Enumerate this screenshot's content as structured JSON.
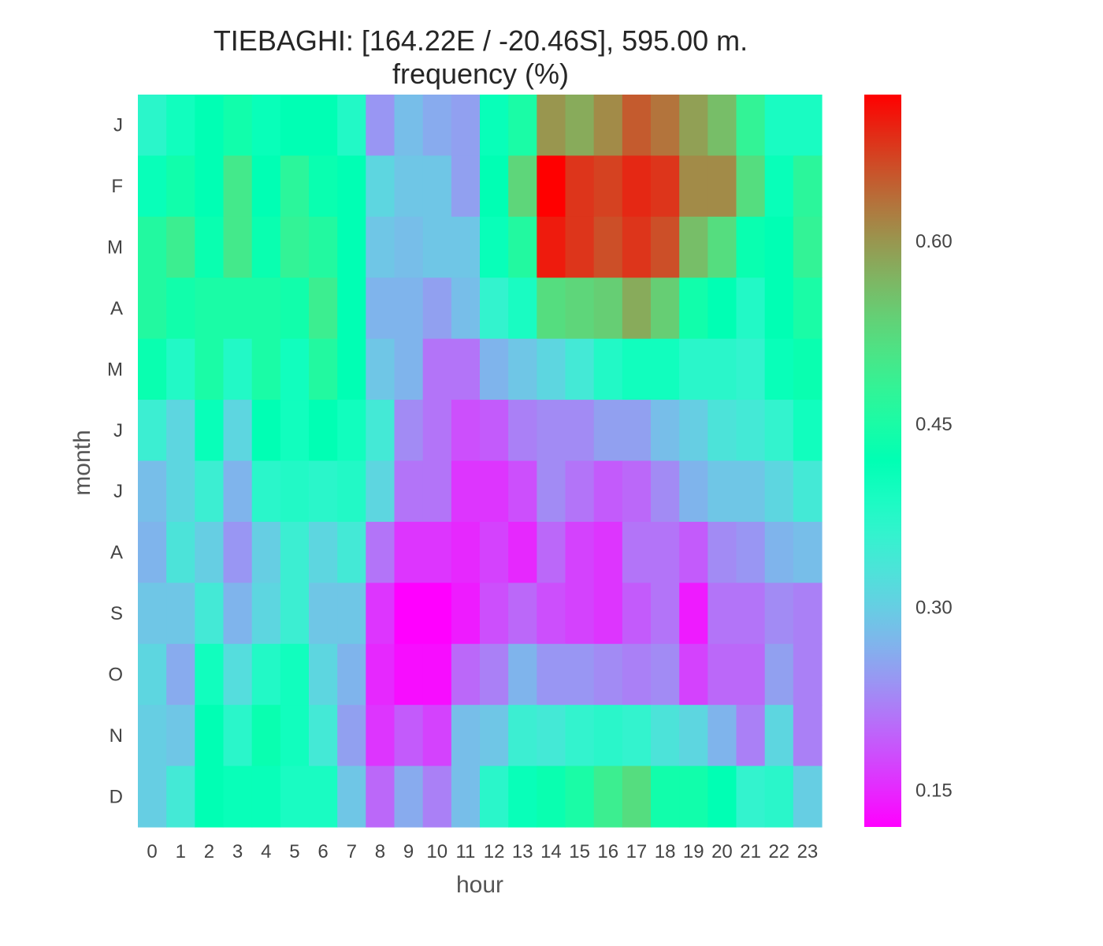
{
  "chart_data": {
    "type": "heatmap",
    "title": "TIEBAGHI: [164.22E / -20.46S], 595.00 m.",
    "subtitle": "frequency (%)",
    "xlabel": "hour",
    "ylabel": "month",
    "x_categories": [
      "0",
      "1",
      "2",
      "3",
      "4",
      "5",
      "6",
      "7",
      "8",
      "9",
      "10",
      "11",
      "12",
      "13",
      "14",
      "15",
      "16",
      "17",
      "18",
      "19",
      "20",
      "21",
      "22",
      "23"
    ],
    "y_categories": [
      "J",
      "F",
      "M",
      "A",
      "M",
      "J",
      "J",
      "A",
      "S",
      "O",
      "N",
      "D"
    ],
    "colormap": "rainbow",
    "vmin": 0.12,
    "vmax": 0.72,
    "colorbar_ticks": [
      {
        "value": 0.15,
        "label": "0.15"
      },
      {
        "value": 0.3,
        "label": "0.30"
      },
      {
        "value": 0.45,
        "label": "0.45"
      },
      {
        "value": 0.6,
        "label": "0.60"
      }
    ],
    "values": [
      [
        0.37,
        0.4,
        0.42,
        0.44,
        0.41,
        0.42,
        0.42,
        0.38,
        0.24,
        0.28,
        0.26,
        0.25,
        0.41,
        0.45,
        0.6,
        0.58,
        0.61,
        0.65,
        0.63,
        0.59,
        0.56,
        0.48,
        0.39,
        0.39
      ],
      [
        0.41,
        0.44,
        0.42,
        0.5,
        0.42,
        0.47,
        0.43,
        0.42,
        0.31,
        0.29,
        0.29,
        0.25,
        0.42,
        0.53,
        0.72,
        0.68,
        0.67,
        0.69,
        0.68,
        0.61,
        0.61,
        0.52,
        0.41,
        0.47
      ],
      [
        0.46,
        0.49,
        0.43,
        0.5,
        0.43,
        0.48,
        0.46,
        0.42,
        0.29,
        0.28,
        0.29,
        0.29,
        0.41,
        0.46,
        0.7,
        0.68,
        0.66,
        0.68,
        0.66,
        0.56,
        0.52,
        0.43,
        0.42,
        0.48
      ],
      [
        0.46,
        0.44,
        0.45,
        0.45,
        0.45,
        0.44,
        0.49,
        0.42,
        0.27,
        0.27,
        0.25,
        0.28,
        0.36,
        0.39,
        0.52,
        0.53,
        0.54,
        0.58,
        0.54,
        0.44,
        0.42,
        0.38,
        0.42,
        0.45
      ],
      [
        0.43,
        0.38,
        0.45,
        0.38,
        0.45,
        0.4,
        0.46,
        0.42,
        0.29,
        0.27,
        0.21,
        0.21,
        0.27,
        0.29,
        0.31,
        0.34,
        0.38,
        0.4,
        0.4,
        0.37,
        0.37,
        0.36,
        0.41,
        0.43
      ],
      [
        0.35,
        0.31,
        0.41,
        0.31,
        0.42,
        0.4,
        0.42,
        0.4,
        0.34,
        0.23,
        0.21,
        0.18,
        0.19,
        0.22,
        0.23,
        0.23,
        0.25,
        0.25,
        0.28,
        0.3,
        0.33,
        0.34,
        0.36,
        0.4
      ],
      [
        0.28,
        0.31,
        0.35,
        0.27,
        0.37,
        0.38,
        0.37,
        0.38,
        0.31,
        0.21,
        0.21,
        0.16,
        0.16,
        0.18,
        0.23,
        0.21,
        0.19,
        0.2,
        0.23,
        0.27,
        0.29,
        0.29,
        0.31,
        0.34
      ],
      [
        0.27,
        0.33,
        0.3,
        0.24,
        0.3,
        0.35,
        0.31,
        0.34,
        0.21,
        0.16,
        0.16,
        0.15,
        0.17,
        0.15,
        0.2,
        0.17,
        0.16,
        0.21,
        0.21,
        0.19,
        0.23,
        0.24,
        0.27,
        0.28
      ],
      [
        0.29,
        0.29,
        0.34,
        0.27,
        0.31,
        0.35,
        0.29,
        0.29,
        0.16,
        0.12,
        0.12,
        0.14,
        0.18,
        0.2,
        0.18,
        0.17,
        0.16,
        0.19,
        0.21,
        0.14,
        0.21,
        0.21,
        0.23,
        0.22
      ],
      [
        0.31,
        0.26,
        0.4,
        0.32,
        0.38,
        0.4,
        0.31,
        0.27,
        0.15,
        0.13,
        0.13,
        0.2,
        0.22,
        0.27,
        0.24,
        0.24,
        0.23,
        0.22,
        0.23,
        0.17,
        0.2,
        0.2,
        0.25,
        0.22
      ],
      [
        0.3,
        0.29,
        0.42,
        0.37,
        0.43,
        0.4,
        0.34,
        0.25,
        0.16,
        0.19,
        0.17,
        0.28,
        0.29,
        0.35,
        0.34,
        0.36,
        0.37,
        0.36,
        0.33,
        0.31,
        0.27,
        0.22,
        0.31,
        0.22
      ],
      [
        0.3,
        0.34,
        0.42,
        0.41,
        0.41,
        0.39,
        0.39,
        0.29,
        0.2,
        0.26,
        0.22,
        0.28,
        0.37,
        0.41,
        0.43,
        0.45,
        0.49,
        0.52,
        0.44,
        0.44,
        0.42,
        0.36,
        0.37,
        0.3
      ]
    ]
  }
}
